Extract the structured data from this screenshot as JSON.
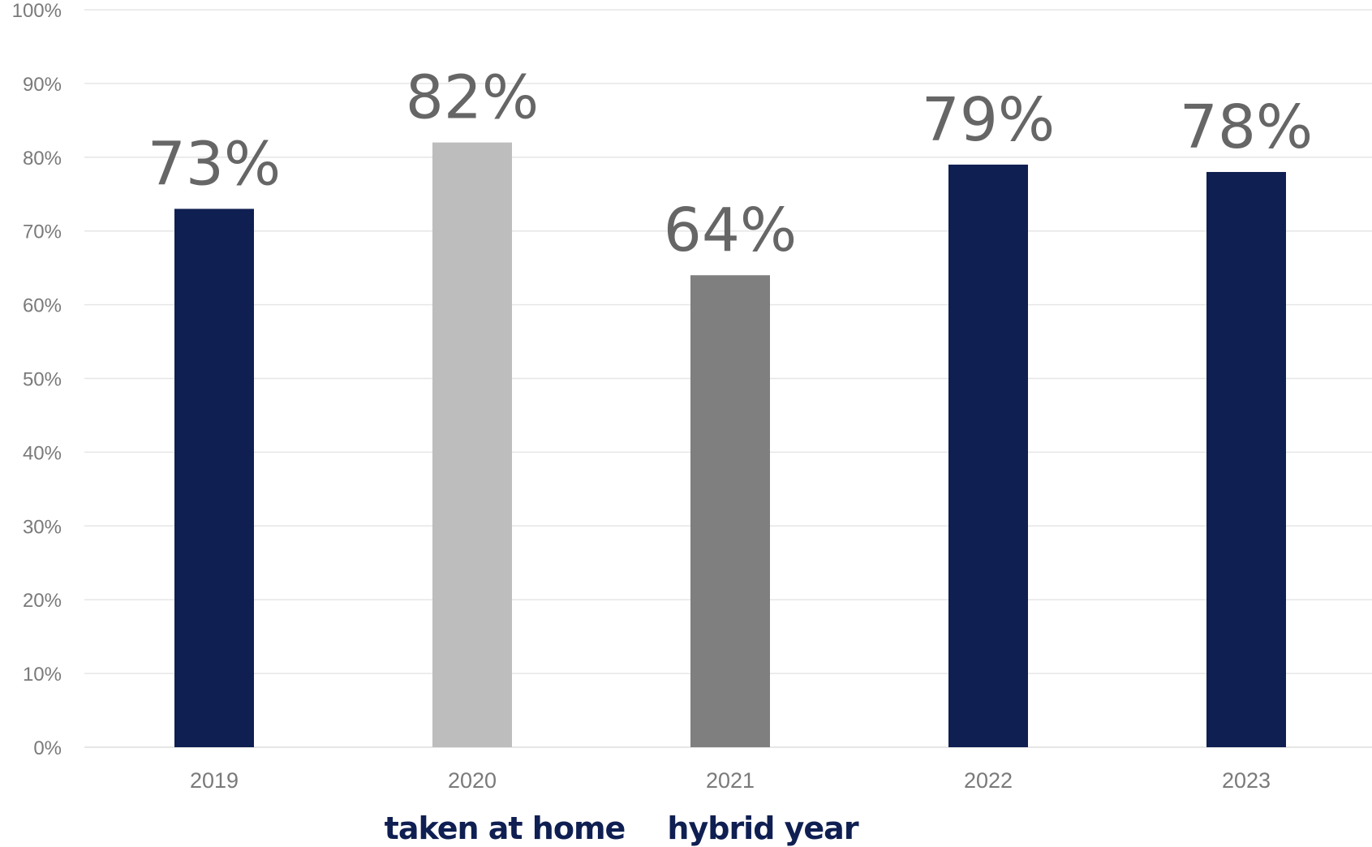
{
  "chart_data": {
    "type": "bar",
    "categories": [
      "2019",
      "2020",
      "2021",
      "2022",
      "2023"
    ],
    "values": [
      73,
      82,
      64,
      79,
      78
    ],
    "value_labels": [
      "73%",
      "82%",
      "64%",
      "79%",
      "78%"
    ],
    "bar_colors": [
      "#0f1f52",
      "#bdbdbd",
      "#7f7f7f",
      "#0f1f52",
      "#0f1f52"
    ],
    "ylim": [
      0,
      100
    ],
    "y_ticks": [
      0,
      10,
      20,
      30,
      40,
      50,
      60,
      70,
      80,
      90,
      100
    ],
    "y_tick_labels": [
      "0%",
      "10%",
      "20%",
      "30%",
      "40%",
      "50%",
      "60%",
      "70%",
      "80%",
      "90%",
      "100%"
    ],
    "grid": true,
    "grid_color": "#e6e6e6",
    "annotations": [
      {
        "category": "2020",
        "text": "taken at home"
      },
      {
        "category": "2021",
        "text": "hybrid year"
      }
    ],
    "annotation_color": "#0f1f52",
    "title": "",
    "xlabel": "",
    "ylabel": ""
  }
}
